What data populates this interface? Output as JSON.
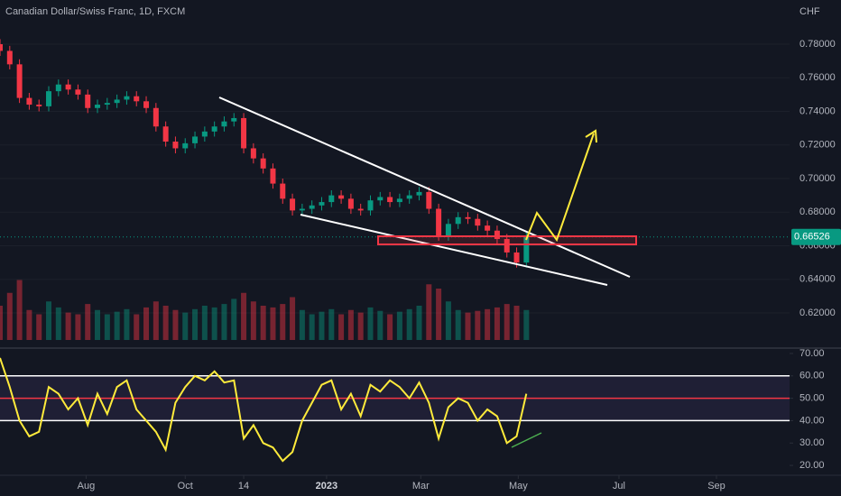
{
  "chart_data": [
    {
      "type": "candlestick",
      "title": "Canadian Dollar/Swiss Franc, 1D, FXCM",
      "currency": "CHF",
      "x": [
        0,
        6,
        12,
        18,
        24,
        30,
        36,
        42,
        48,
        54,
        60,
        66,
        72,
        78,
        84,
        90,
        96,
        102,
        108,
        114,
        120,
        126,
        132,
        138,
        144,
        150,
        156,
        162,
        168,
        174,
        180,
        186,
        192,
        198,
        204,
        210,
        216,
        222,
        228,
        234,
        240,
        246,
        252,
        258,
        264,
        270,
        276,
        282,
        288,
        294,
        300,
        306,
        312,
        318,
        324
      ],
      "open": [
        0.78,
        0.776,
        0.768,
        0.748,
        0.744,
        0.743,
        0.752,
        0.756,
        0.753,
        0.75,
        0.742,
        0.744,
        0.745,
        0.747,
        0.749,
        0.746,
        0.742,
        0.731,
        0.722,
        0.718,
        0.721,
        0.725,
        0.728,
        0.731,
        0.734,
        0.736,
        0.718,
        0.712,
        0.706,
        0.697,
        0.688,
        0.681,
        0.682,
        0.684,
        0.686,
        0.69,
        0.688,
        0.682,
        0.681,
        0.687,
        0.689,
        0.686,
        0.688,
        0.69,
        0.692,
        0.682,
        0.666,
        0.673,
        0.677,
        0.676,
        0.672,
        0.669,
        0.664,
        0.656,
        0.65
      ],
      "high": [
        0.783,
        0.779,
        0.771,
        0.751,
        0.747,
        0.755,
        0.759,
        0.759,
        0.756,
        0.753,
        0.747,
        0.748,
        0.75,
        0.752,
        0.752,
        0.749,
        0.745,
        0.734,
        0.725,
        0.724,
        0.728,
        0.731,
        0.734,
        0.737,
        0.739,
        0.739,
        0.721,
        0.715,
        0.709,
        0.7,
        0.691,
        0.685,
        0.687,
        0.689,
        0.693,
        0.693,
        0.691,
        0.685,
        0.69,
        0.692,
        0.692,
        0.691,
        0.693,
        0.695,
        0.695,
        0.685,
        0.676,
        0.68,
        0.68,
        0.679,
        0.675,
        0.672,
        0.667,
        0.659,
        0.6682
      ],
      "low": [
        0.773,
        0.765,
        0.745,
        0.741,
        0.74,
        0.74,
        0.749,
        0.75,
        0.747,
        0.739,
        0.739,
        0.741,
        0.742,
        0.744,
        0.743,
        0.739,
        0.728,
        0.719,
        0.715,
        0.715,
        0.718,
        0.722,
        0.725,
        0.728,
        0.731,
        0.715,
        0.709,
        0.703,
        0.694,
        0.685,
        0.678,
        0.678,
        0.679,
        0.681,
        0.683,
        0.685,
        0.679,
        0.678,
        0.678,
        0.684,
        0.683,
        0.683,
        0.685,
        0.687,
        0.679,
        0.663,
        0.663,
        0.67,
        0.673,
        0.669,
        0.666,
        0.661,
        0.653,
        0.647,
        0.647
      ],
      "close": [
        0.776,
        0.768,
        0.748,
        0.744,
        0.743,
        0.752,
        0.756,
        0.753,
        0.75,
        0.742,
        0.744,
        0.745,
        0.747,
        0.749,
        0.746,
        0.742,
        0.731,
        0.722,
        0.718,
        0.721,
        0.725,
        0.728,
        0.731,
        0.734,
        0.736,
        0.718,
        0.712,
        0.706,
        0.697,
        0.688,
        0.681,
        0.682,
        0.684,
        0.686,
        0.69,
        0.688,
        0.682,
        0.681,
        0.687,
        0.689,
        0.686,
        0.688,
        0.69,
        0.692,
        0.682,
        0.666,
        0.673,
        0.677,
        0.676,
        0.672,
        0.669,
        0.664,
        0.656,
        0.65,
        0.66526
      ],
      "volume": [
        40,
        55,
        70,
        35,
        30,
        45,
        38,
        32,
        30,
        42,
        35,
        30,
        33,
        36,
        30,
        38,
        45,
        40,
        35,
        32,
        36,
        40,
        38,
        42,
        48,
        55,
        45,
        40,
        38,
        42,
        50,
        35,
        30,
        33,
        36,
        30,
        35,
        32,
        38,
        34,
        30,
        33,
        36,
        40,
        65,
        60,
        45,
        35,
        32,
        34,
        36,
        38,
        42,
        40,
        35
      ],
      "volume_ylim": [
        0,
        100
      ],
      "up_color": "#089981",
      "down_color": "#f23645",
      "xlim": [
        0,
        486
      ],
      "ylim": [
        0.5996,
        0.8063
      ],
      "yticks": [
        {
          "value": 0.62,
          "label": "0.62000"
        },
        {
          "value": 0.64,
          "label": "0.64000"
        },
        {
          "value": 0.66,
          "label": "0.66000"
        },
        {
          "value": 0.68,
          "label": "0.68000"
        },
        {
          "value": 0.7,
          "label": "0.70000"
        },
        {
          "value": 0.72,
          "label": "0.72000"
        },
        {
          "value": 0.74,
          "label": "0.74000"
        },
        {
          "value": 0.76,
          "label": "0.76000"
        },
        {
          "value": 0.78,
          "label": "0.78000"
        }
      ],
      "last_price": 0.66526,
      "grid": true
    },
    {
      "type": "line",
      "x": [
        0,
        6,
        12,
        18,
        24,
        30,
        36,
        42,
        48,
        54,
        60,
        66,
        72,
        78,
        84,
        90,
        96,
        102,
        108,
        114,
        120,
        126,
        132,
        138,
        144,
        150,
        156,
        162,
        168,
        174,
        180,
        186,
        192,
        198,
        204,
        210,
        216,
        222,
        228,
        234,
        240,
        246,
        252,
        258,
        264,
        270,
        276,
        282,
        288,
        294,
        300,
        306,
        312,
        318,
        324
      ],
      "values": [
        68,
        55,
        40,
        33,
        35,
        55,
        52,
        45,
        50,
        38,
        52,
        43,
        55,
        58,
        45,
        40,
        35,
        27,
        48,
        55,
        60,
        58,
        62,
        57,
        58,
        32,
        38,
        30,
        28,
        22,
        26,
        40,
        48,
        56,
        58,
        45,
        52,
        42,
        56,
        53,
        58,
        55,
        50,
        57,
        48,
        32,
        46,
        50,
        48,
        40,
        45,
        42,
        30,
        33,
        52
      ],
      "color": "#ffeb3b",
      "levels": [
        {
          "value": 60,
          "color": "#ffffff"
        },
        {
          "value": 50,
          "color": "#f23645"
        },
        {
          "value": 40,
          "color": "#ffffff"
        }
      ],
      "xlim": [
        0,
        486
      ],
      "ylim": [
        15.6,
        72.0
      ],
      "yticks": [
        {
          "value": 20,
          "label": "20.00"
        },
        {
          "value": 30,
          "label": "30.00"
        },
        {
          "value": 40,
          "label": "40.00"
        },
        {
          "value": 50,
          "label": "50.00"
        },
        {
          "value": 60,
          "label": "60.00"
        },
        {
          "value": 70,
          "label": "70.00"
        }
      ],
      "xticks": [
        {
          "value": 53,
          "label": "Aug"
        },
        {
          "value": 114,
          "label": "Oct"
        },
        {
          "value": 150,
          "label": "14"
        },
        {
          "value": 201,
          "label": "2023"
        },
        {
          "value": 259,
          "label": "Mar"
        },
        {
          "value": 319,
          "label": "May"
        },
        {
          "value": 381,
          "label": "Jul"
        },
        {
          "value": 441,
          "label": "Sep"
        }
      ]
    }
  ]
}
